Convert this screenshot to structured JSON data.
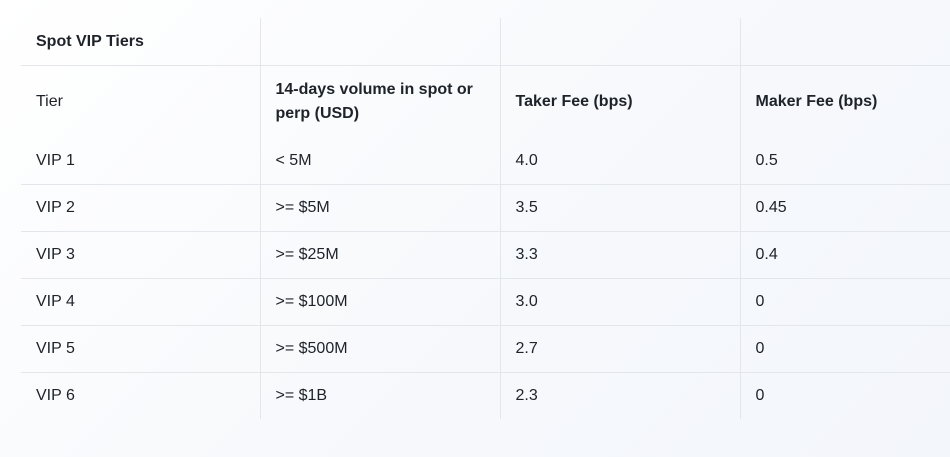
{
  "title": "Spot VIP Tiers",
  "columns": [
    "Tier",
    "14-days volume in spot or perp (USD)",
    "Taker Fee (bps)",
    "Maker Fee (bps)"
  ],
  "rows": [
    [
      "VIP 1",
      "< 5M",
      "4.0",
      "0.5"
    ],
    [
      "VIP 2",
      ">= $5M",
      "3.5",
      "0.45"
    ],
    [
      "VIP 3",
      ">= $25M",
      "3.3",
      "0.4"
    ],
    [
      "VIP 4",
      ">= $100M",
      "3.0",
      "0"
    ],
    [
      "VIP 5",
      ">= $500M",
      "2.7",
      "0"
    ],
    [
      "VIP 6",
      ">= $1B",
      "2.3",
      "0"
    ]
  ]
}
